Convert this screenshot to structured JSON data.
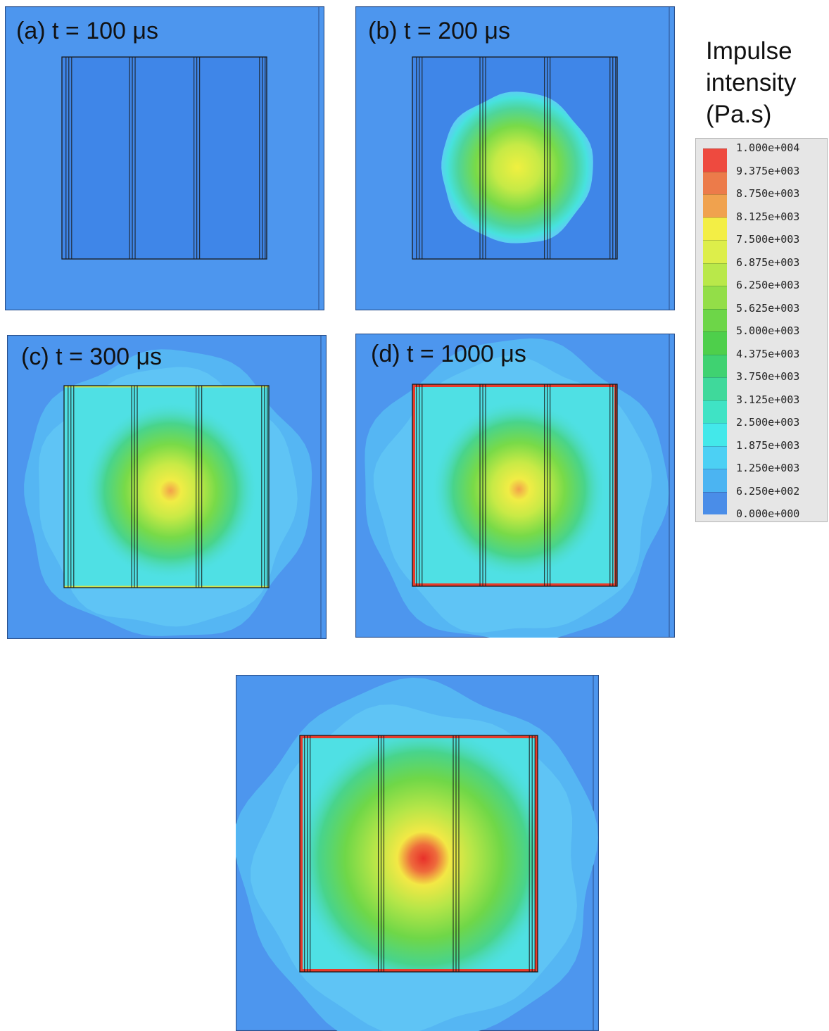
{
  "panels": [
    {
      "id": "a",
      "label": "(a) t = 100 μs",
      "stage": 0
    },
    {
      "id": "b",
      "label": "(b) t = 200 μs",
      "stage": 1
    },
    {
      "id": "c",
      "label": "(c) t = 300 μs",
      "stage": 2
    },
    {
      "id": "d",
      "label": "(d) t = 1000 μs",
      "stage": 3
    },
    {
      "id": "e",
      "label": "",
      "stage": 4
    }
  ],
  "legend": {
    "title_lines": [
      "Impulse",
      "intensity",
      "(Pa.s)"
    ],
    "labels": [
      "1.000e+004",
      "9.375e+003",
      "8.750e+003",
      "8.125e+003",
      "7.500e+003",
      "6.875e+003",
      "6.250e+003",
      "5.625e+003",
      "5.000e+003",
      "4.375e+003",
      "3.750e+003",
      "3.125e+003",
      "2.500e+003",
      "1.875e+003",
      "1.250e+003",
      "6.250e+002",
      "0.000e+000"
    ],
    "swatch_colors": [
      "#ee4a3f",
      "#ec7b4a",
      "#f0a24e",
      "#f3ee45",
      "#ddee4a",
      "#b9e84a",
      "#93de48",
      "#6dd648",
      "#4ecf4b",
      "#3fd271",
      "#3fd99b",
      "#3fe3c5",
      "#43e8ea",
      "#4cd0f4",
      "#4bb4f2",
      "#4a8de8"
    ]
  },
  "colors": {
    "background": "#4d96ee",
    "plate": "#3f86e8",
    "stiffener": "#1a1a1a",
    "edge_hot": "#e83a2a"
  }
}
